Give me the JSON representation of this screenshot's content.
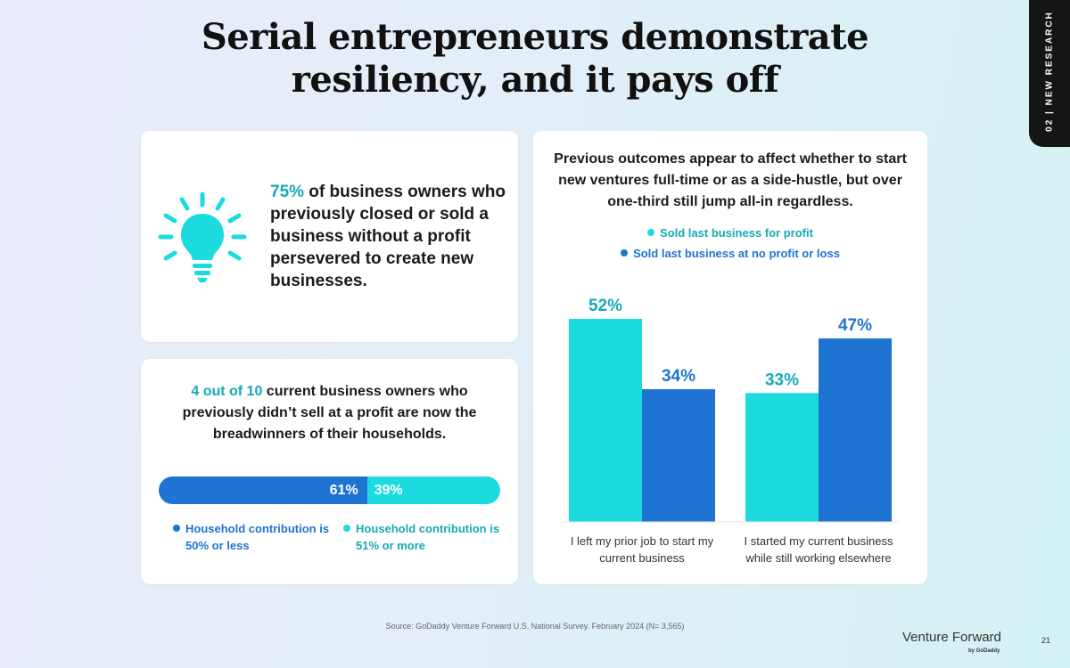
{
  "title_line1": "Serial entrepreneurs demonstrate",
  "title_line2": "resiliency, and it pays off",
  "side_tab": "02 | NEW RESEARCH",
  "card_a": {
    "stat_value": "75%",
    "stat_rest": " of business owners who previously closed or sold a business without a profit persevered to create new businesses."
  },
  "card_b": {
    "stat_value": "4 out of 10",
    "stat_rest": " current business owners who previously didn’t sell at a profit are now the breadwinners of their households.",
    "bar": [
      {
        "label": "61%",
        "value": 61
      },
      {
        "label": "39%",
        "value": 39
      }
    ],
    "legend": [
      "Household contribution is 50% or less",
      "Household contribution is 51% or more"
    ]
  },
  "chart_data": {
    "type": "bar",
    "title": "Previous outcomes appear to affect whether to start new ventures full-time or as a side-hustle, but over one-third still jump all-in regardless.",
    "categories": [
      [
        "I left my prior job to start my",
        "current business"
      ],
      [
        "I started my current business",
        "while still working elsewhere"
      ]
    ],
    "series": [
      {
        "name": "Sold last business for profit",
        "values": [
          52,
          33
        ],
        "labels": [
          "52%",
          "33%"
        ]
      },
      {
        "name": "Sold last business at no profit or loss",
        "values": [
          34,
          47
        ],
        "labels": [
          "34%",
          "47%"
        ]
      }
    ],
    "ylim": [
      0,
      52
    ]
  },
  "colors": {
    "teal": "#1bdbdf",
    "blue": "#1f73d2",
    "accent_text": "#17a9b4"
  },
  "icons": [
    "lightbulb-icon"
  ],
  "footer": {
    "source": "Source: GoDaddy Venture Forward U.S. National Survey. February 2024 (N= 3,565)",
    "brand": "Venture Forward",
    "brand_sub": "by GoDaddy",
    "page_number": "21"
  }
}
